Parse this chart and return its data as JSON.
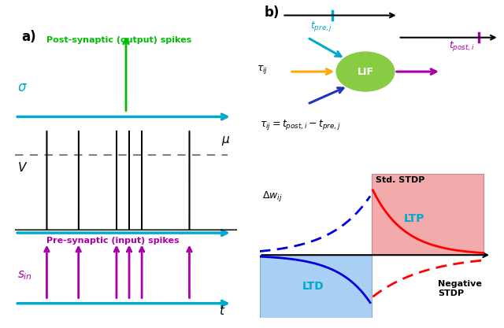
{
  "fig_width": 6.4,
  "fig_height": 4.17,
  "panel_a_label": "a)",
  "panel_b_label": "b)",
  "post_syn_label": "Post-synaptic (output) spikes",
  "sigma_label": "$\\sigma$",
  "mu_label": "$\\mu$",
  "V_label": "$V$",
  "pre_syn_label": "Pre-synaptic (input) spikes",
  "sin_label": "$s_{in}$",
  "t_label": "$t$",
  "tau_ij_label": "$\\tau_{ij}$",
  "lif_label": "LIF",
  "t_pre_label": "$t_{pre,j}$",
  "t_post_label": "$t_{post,i}$",
  "formula_label": "$\\tau_{ij} = t_{post,i} - t_{pre,j}$",
  "std_stdp_label": "Std. STDP",
  "neg_stdp_label": "Negative\nSTDP",
  "ltp_label": "LTP",
  "ltd_label": "LTD",
  "dw_label": "$\\Delta w_{ij}$",
  "cyan_color": "#00AACC",
  "green_color": "#00BB00",
  "purple_color": "#AA00AA",
  "lif_circle_color": "#88CC44",
  "spike_times_input": [
    1.0,
    2.0,
    3.2,
    3.6,
    4.0,
    5.5
  ],
  "spike_times_output": [
    4.1
  ]
}
